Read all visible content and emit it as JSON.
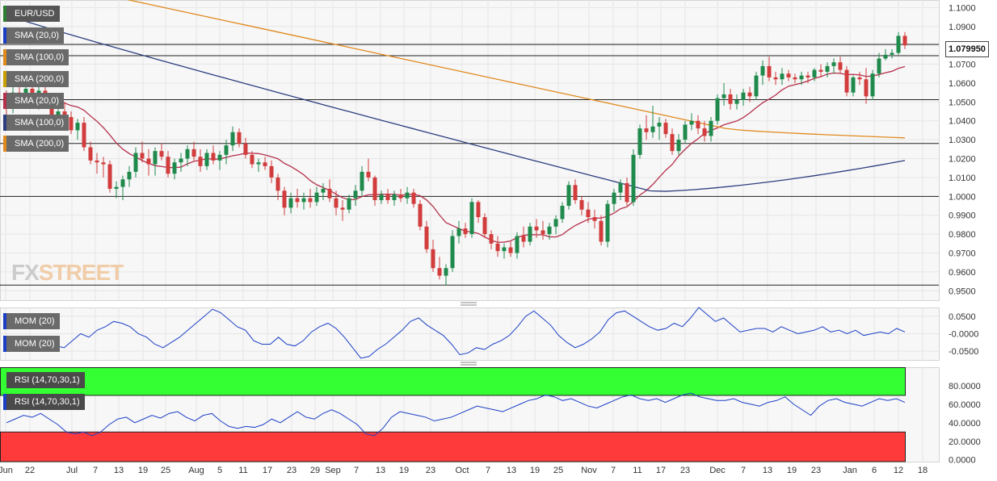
{
  "symbol": "EUR/USD",
  "last_price": "1.079950",
  "watermark": {
    "fx": "FX",
    "street": "STREET"
  },
  "indicator_tags": {
    "price": [
      "SMA (20,0)",
      "SMA (100,0)",
      "SMA (200,0)",
      "SMA (20,0)",
      "SMA (100,0)",
      "SMA (200,0)"
    ],
    "momentum": [
      "MOM (20)",
      "MOM (20)"
    ],
    "rsi": [
      "RSI (14,70,30,1)",
      "RSI (14,70,30,1)"
    ]
  },
  "colors": {
    "up": "#1f8a4c",
    "down": "#d23c3c",
    "sma20": "#b5304a",
    "sma100": "#2c3e7e",
    "sma200": "#e08a1e",
    "momentum": "#1b3fc4",
    "rsi_line": "#1b3fc4",
    "rsi_overbought": "#33ff33",
    "rsi_oversold": "#ff3a3a",
    "grid": "#e6e6e6",
    "hline": "#222222"
  },
  "chart_data": {
    "type": "candlestick",
    "x_labels": [
      "Jun",
      "22",
      "Jul",
      "7",
      "13",
      "19",
      "25",
      "Aug",
      "5",
      "11",
      "17",
      "23",
      "29",
      "Sep",
      "7",
      "13",
      "19",
      "23",
      "Oct",
      "7",
      "13",
      "19",
      "25",
      "Nov",
      "7",
      "11",
      "17",
      "23",
      "Dec",
      "7",
      "13",
      "19",
      "23",
      "Jan",
      "6",
      "12",
      "18"
    ],
    "price_axis": {
      "ticks": [
        "1.1000",
        "1.0900",
        "1.0800",
        "1.0700",
        "1.0600",
        "1.0500",
        "1.0400",
        "1.0300",
        "1.0200",
        "1.0100",
        "1.0000",
        "0.9900",
        "0.9800",
        "0.9700",
        "0.9600",
        "0.9500"
      ],
      "range": [
        0.945,
        1.104
      ]
    },
    "horizontal_levels": [
      1.0805,
      1.0745,
      1.0512,
      1.028,
      1.0,
      0.953
    ],
    "candles_ohlc": [
      [
        1.052,
        1.056,
        1.043,
        1.047
      ],
      [
        1.047,
        1.058,
        1.044,
        1.055
      ],
      [
        1.055,
        1.06,
        1.05,
        1.052
      ],
      [
        1.052,
        1.059,
        1.048,
        1.057
      ],
      [
        1.057,
        1.06,
        1.049,
        1.051
      ],
      [
        1.051,
        1.058,
        1.046,
        1.056
      ],
      [
        1.056,
        1.06,
        1.047,
        1.048
      ],
      [
        1.048,
        1.052,
        1.038,
        1.041
      ],
      [
        1.041,
        1.047,
        1.036,
        1.045
      ],
      [
        1.045,
        1.05,
        1.039,
        1.042
      ],
      [
        1.042,
        1.045,
        1.033,
        1.035
      ],
      [
        1.035,
        1.041,
        1.03,
        1.039
      ],
      [
        1.039,
        1.042,
        1.024,
        1.026
      ],
      [
        1.026,
        1.029,
        1.017,
        1.019
      ],
      [
        1.019,
        1.023,
        1.012,
        1.018
      ],
      [
        1.018,
        1.021,
        1.01,
        1.017
      ],
      [
        1.017,
        1.019,
        1.002,
        1.004
      ],
      [
        1.004,
        1.008,
        0.999,
        1.005
      ],
      [
        1.005,
        1.011,
        0.998,
        1.009
      ],
      [
        1.009,
        1.016,
        1.005,
        1.013
      ],
      [
        1.013,
        1.026,
        1.01,
        1.023
      ],
      [
        1.023,
        1.029,
        1.018,
        1.02
      ],
      [
        1.02,
        1.025,
        1.011,
        1.017
      ],
      [
        1.017,
        1.026,
        1.011,
        1.024
      ],
      [
        1.024,
        1.028,
        1.019,
        1.021
      ],
      [
        1.021,
        1.024,
        1.01,
        1.012
      ],
      [
        1.012,
        1.02,
        1.009,
        1.018
      ],
      [
        1.018,
        1.023,
        1.013,
        1.02
      ],
      [
        1.02,
        1.027,
        1.016,
        1.025
      ],
      [
        1.025,
        1.029,
        1.019,
        1.021
      ],
      [
        1.021,
        1.025,
        1.013,
        1.016
      ],
      [
        1.016,
        1.025,
        1.014,
        1.023
      ],
      [
        1.023,
        1.027,
        1.017,
        1.019
      ],
      [
        1.019,
        1.024,
        1.014,
        1.022
      ],
      [
        1.022,
        1.03,
        1.017,
        1.027
      ],
      [
        1.027,
        1.037,
        1.024,
        1.034
      ],
      [
        1.034,
        1.036,
        1.026,
        1.028
      ],
      [
        1.028,
        1.031,
        1.02,
        1.022
      ],
      [
        1.022,
        1.024,
        1.015,
        1.017
      ],
      [
        1.017,
        1.02,
        1.013,
        1.018
      ],
      [
        1.018,
        1.021,
        1.014,
        1.016
      ],
      [
        1.016,
        1.019,
        1.007,
        1.01
      ],
      [
        1.01,
        1.012,
        0.998,
        1.003
      ],
      [
        1.003,
        1.005,
        0.99,
        0.994
      ],
      [
        0.994,
        1.002,
        0.991,
        0.999
      ],
      [
        0.999,
        1.004,
        0.994,
        0.997
      ],
      [
        0.997,
        1.002,
        0.993,
        0.999
      ],
      [
        0.999,
        1.004,
        0.994,
        0.997
      ],
      [
        0.997,
        1.005,
        0.995,
        1.002
      ],
      [
        1.002,
        1.007,
        0.998,
        1.004
      ],
      [
        1.004,
        1.009,
        0.997,
        0.999
      ],
      [
        0.999,
        1.003,
        0.99,
        0.994
      ],
      [
        0.994,
        0.998,
        0.987,
        0.993
      ],
      [
        0.993,
        1.001,
        0.991,
        0.999
      ],
      [
        0.999,
        1.006,
        0.995,
        1.003
      ],
      [
        1.003,
        1.016,
        1.0,
        1.013
      ],
      [
        1.013,
        1.02,
        1.008,
        1.01
      ],
      [
        1.01,
        1.011,
        0.995,
        0.998
      ],
      [
        0.998,
        1.003,
        0.996,
        1.001
      ],
      [
        1.001,
        1.004,
        0.996,
        0.998
      ],
      [
        0.998,
        1.003,
        0.995,
        1.001
      ],
      [
        1.001,
        1.004,
        0.997,
        0.999
      ],
      [
        0.999,
        1.005,
        0.996,
        1.002
      ],
      [
        1.002,
        1.004,
        0.994,
        0.996
      ],
      [
        0.996,
        0.998,
        0.982,
        0.984
      ],
      [
        0.984,
        0.987,
        0.97,
        0.972
      ],
      [
        0.972,
        0.977,
        0.96,
        0.962
      ],
      [
        0.962,
        0.968,
        0.956,
        0.958
      ],
      [
        0.958,
        0.964,
        0.953,
        0.962
      ],
      [
        0.962,
        0.982,
        0.96,
        0.979
      ],
      [
        0.979,
        0.987,
        0.975,
        0.983
      ],
      [
        0.983,
        0.986,
        0.978,
        0.98
      ],
      [
        0.98,
        0.999,
        0.978,
        0.997
      ],
      [
        0.997,
        0.998,
        0.986,
        0.989
      ],
      [
        0.989,
        0.991,
        0.978,
        0.98
      ],
      [
        0.98,
        0.982,
        0.972,
        0.975
      ],
      [
        0.975,
        0.979,
        0.968,
        0.971
      ],
      [
        0.971,
        0.975,
        0.967,
        0.973
      ],
      [
        0.973,
        0.976,
        0.968,
        0.97
      ],
      [
        0.97,
        0.981,
        0.967,
        0.979
      ],
      [
        0.979,
        0.984,
        0.973,
        0.976
      ],
      [
        0.976,
        0.986,
        0.974,
        0.984
      ],
      [
        0.984,
        0.988,
        0.978,
        0.982
      ],
      [
        0.982,
        0.987,
        0.977,
        0.98
      ],
      [
        0.98,
        0.986,
        0.977,
        0.984
      ],
      [
        0.984,
        0.99,
        0.98,
        0.988
      ],
      [
        0.988,
        0.997,
        0.986,
        0.995
      ],
      [
        0.995,
        1.008,
        0.993,
        1.006
      ],
      [
        1.006,
        1.009,
        0.996,
        0.998
      ],
      [
        0.998,
        1.0,
        0.99,
        0.993
      ],
      [
        0.993,
        0.997,
        0.986,
        0.989
      ],
      [
        0.989,
        0.993,
        0.983,
        0.987
      ],
      [
        0.987,
        0.99,
        0.974,
        0.976
      ],
      [
        0.976,
        0.998,
        0.973,
        0.996
      ],
      [
        0.996,
        1.004,
        0.992,
        1.002
      ],
      [
        1.002,
        1.009,
        0.998,
        1.007
      ],
      [
        1.007,
        1.01,
        0.995,
        0.997
      ],
      [
        0.997,
        1.025,
        0.995,
        1.022
      ],
      [
        1.022,
        1.038,
        1.02,
        1.036
      ],
      [
        1.036,
        1.043,
        1.03,
        1.034
      ],
      [
        1.034,
        1.048,
        1.031,
        1.037
      ],
      [
        1.037,
        1.042,
        1.03,
        1.039
      ],
      [
        1.039,
        1.041,
        1.031,
        1.033
      ],
      [
        1.033,
        1.036,
        1.022,
        1.024
      ],
      [
        1.024,
        1.033,
        1.022,
        1.03
      ],
      [
        1.03,
        1.04,
        1.028,
        1.038
      ],
      [
        1.038,
        1.044,
        1.035,
        1.04
      ],
      [
        1.04,
        1.043,
        1.033,
        1.036
      ],
      [
        1.036,
        1.04,
        1.029,
        1.032
      ],
      [
        1.032,
        1.042,
        1.029,
        1.04
      ],
      [
        1.04,
        1.054,
        1.038,
        1.052
      ],
      [
        1.052,
        1.06,
        1.048,
        1.054
      ],
      [
        1.054,
        1.057,
        1.046,
        1.049
      ],
      [
        1.049,
        1.054,
        1.046,
        1.051
      ],
      [
        1.051,
        1.057,
        1.048,
        1.055
      ],
      [
        1.055,
        1.058,
        1.05,
        1.053
      ],
      [
        1.053,
        1.066,
        1.051,
        1.064
      ],
      [
        1.064,
        1.072,
        1.059,
        1.069
      ],
      [
        1.069,
        1.074,
        1.061,
        1.063
      ],
      [
        1.063,
        1.066,
        1.059,
        1.062
      ],
      [
        1.062,
        1.068,
        1.059,
        1.065
      ],
      [
        1.065,
        1.067,
        1.061,
        1.063
      ],
      [
        1.063,
        1.065,
        1.06,
        1.062
      ],
      [
        1.062,
        1.066,
        1.059,
        1.064
      ],
      [
        1.064,
        1.066,
        1.06,
        1.063
      ],
      [
        1.063,
        1.068,
        1.061,
        1.067
      ],
      [
        1.067,
        1.07,
        1.063,
        1.066
      ],
      [
        1.066,
        1.071,
        1.063,
        1.069
      ],
      [
        1.069,
        1.073,
        1.065,
        1.071
      ],
      [
        1.071,
        1.074,
        1.065,
        1.067
      ],
      [
        1.067,
        1.069,
        1.053,
        1.055
      ],
      [
        1.055,
        1.064,
        1.053,
        1.063
      ],
      [
        1.063,
        1.066,
        1.059,
        1.062
      ],
      [
        1.062,
        1.068,
        1.049,
        1.053
      ],
      [
        1.053,
        1.067,
        1.051,
        1.065
      ],
      [
        1.065,
        1.076,
        1.063,
        1.073
      ],
      [
        1.073,
        1.078,
        1.072,
        1.075
      ],
      [
        1.075,
        1.078,
        1.073,
        1.076
      ],
      [
        1.076,
        1.087,
        1.075,
        1.085
      ],
      [
        1.085,
        1.087,
        1.078,
        1.08
      ]
    ],
    "sma20_endpoints": {
      "start": 1.062,
      "end": 1.0665
    },
    "sma100_endpoints": {
      "start": 1.096,
      "end": 1.019
    },
    "sma200_endpoints": {
      "start": 1.118,
      "end": 1.031
    },
    "momentum": {
      "ticks": [
        "0.0500",
        "-0.0000",
        "-0.0500"
      ],
      "range": [
        -0.075,
        0.075
      ],
      "values": [
        -0.01,
        -0.02,
        -0.035,
        -0.05,
        -0.03,
        -0.02,
        -0.035,
        -0.04,
        -0.02,
        0.0,
        -0.01,
        0.01,
        0.02,
        0.035,
        0.03,
        0.02,
        0.0,
        -0.01,
        -0.03,
        -0.04,
        -0.025,
        -0.01,
        0.01,
        0.03,
        0.05,
        0.07,
        0.06,
        0.04,
        0.02,
        0.01,
        -0.02,
        -0.03,
        -0.03,
        -0.01,
        -0.03,
        -0.035,
        -0.02,
        0.005,
        0.02,
        0.03,
        0.015,
        -0.01,
        -0.04,
        -0.07,
        -0.065,
        -0.045,
        -0.03,
        -0.01,
        0.01,
        0.035,
        0.045,
        0.025,
        0.01,
        -0.005,
        -0.03,
        -0.06,
        -0.055,
        -0.04,
        -0.045,
        -0.03,
        -0.02,
        -0.005,
        0.02,
        0.05,
        0.065,
        0.045,
        0.025,
        -0.005,
        -0.025,
        -0.04,
        -0.03,
        -0.015,
        0.005,
        0.04,
        0.06,
        0.065,
        0.05,
        0.035,
        0.02,
        0.01,
        0.015,
        0.03,
        0.02,
        0.045,
        0.075,
        0.055,
        0.035,
        0.045,
        0.025,
        0.005,
        0.01,
        0.015,
        0.015,
        0.005,
        0.02,
        0.01,
        0.0,
        0.005,
        0.01,
        0.02,
        0.005,
        0.01,
        0.0,
        0.01,
        -0.005,
        0.0,
        0.005,
        0.0,
        0.015,
        0.005
      ]
    },
    "rsi": {
      "ticks": [
        "80.0000",
        "60.0000",
        "40.0000",
        "20.0000",
        "0.0000"
      ],
      "range": [
        -2,
        100
      ],
      "overbought": 70,
      "oversold": 30,
      "values": [
        40,
        44,
        48,
        46,
        50,
        44,
        38,
        30,
        28,
        30,
        26,
        30,
        38,
        44,
        46,
        40,
        44,
        48,
        45,
        50,
        52,
        46,
        42,
        48,
        50,
        42,
        36,
        34,
        36,
        35,
        38,
        44,
        40,
        46,
        52,
        46,
        44,
        50,
        54,
        50,
        44,
        38,
        28,
        26,
        34,
        46,
        52,
        50,
        48,
        46,
        42,
        44,
        46,
        50,
        54,
        58,
        56,
        54,
        52,
        56,
        60,
        64,
        66,
        70,
        68,
        64,
        66,
        62,
        58,
        56,
        60,
        64,
        68,
        70,
        66,
        64,
        66,
        62,
        66,
        70,
        72,
        68,
        66,
        64,
        64,
        66,
        62,
        60,
        58,
        62,
        64,
        68,
        60,
        54,
        48,
        58,
        64,
        66,
        62,
        60,
        58,
        62,
        66,
        64,
        66,
        62
      ]
    }
  }
}
